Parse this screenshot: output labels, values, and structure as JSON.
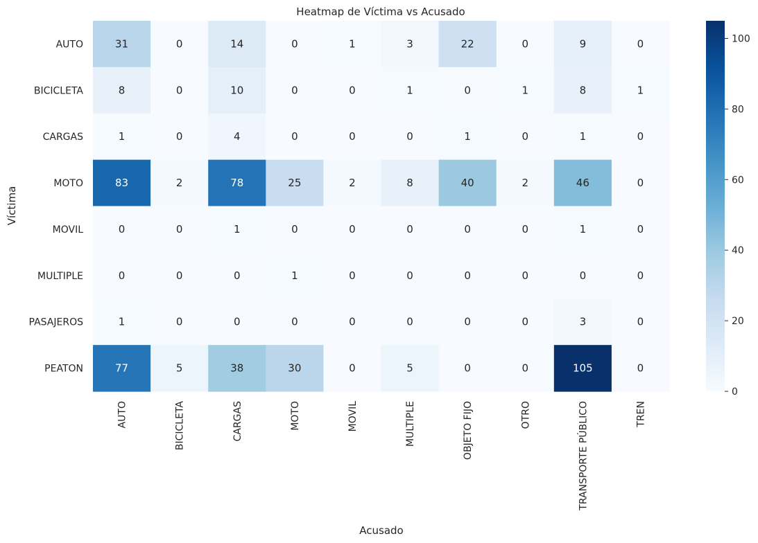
{
  "chart_data": {
    "type": "heatmap",
    "title": "Heatmap de Víctima vs Acusado",
    "xlabel": "Acusado",
    "ylabel": "Víctima",
    "x_categories": [
      "AUTO",
      "BICICLETA",
      "CARGAS",
      "MOTO",
      "MOVIL",
      "MULTIPLE",
      "OBJETO FIJO",
      "OTRO",
      "TRANSPORTE PÚBLICO",
      "TREN"
    ],
    "y_categories": [
      "AUTO",
      "BICICLETA",
      "CARGAS",
      "MOTO",
      "MOVIL",
      "MULTIPLE",
      "PASAJEROS",
      "PEATON"
    ],
    "values": [
      [
        31,
        0,
        14,
        0,
        1,
        3,
        22,
        0,
        9,
        0
      ],
      [
        8,
        0,
        10,
        0,
        0,
        1,
        0,
        1,
        8,
        1
      ],
      [
        1,
        0,
        4,
        0,
        0,
        0,
        1,
        0,
        1,
        0
      ],
      [
        83,
        2,
        78,
        25,
        2,
        8,
        40,
        2,
        46,
        0
      ],
      [
        0,
        0,
        1,
        0,
        0,
        0,
        0,
        0,
        1,
        0
      ],
      [
        0,
        0,
        0,
        1,
        0,
        0,
        0,
        0,
        0,
        0
      ],
      [
        1,
        0,
        0,
        0,
        0,
        0,
        0,
        0,
        3,
        0
      ],
      [
        77,
        5,
        38,
        30,
        0,
        5,
        0,
        0,
        105,
        0
      ]
    ],
    "colormap": "Blues",
    "color_range": [
      0,
      105
    ],
    "colorbar_ticks": [
      0,
      20,
      40,
      60,
      80,
      100
    ],
    "colorbar_tick_labels": [
      "0",
      "20",
      "40",
      "60",
      "80",
      "100"
    ],
    "annotated": true,
    "grid": false
  }
}
